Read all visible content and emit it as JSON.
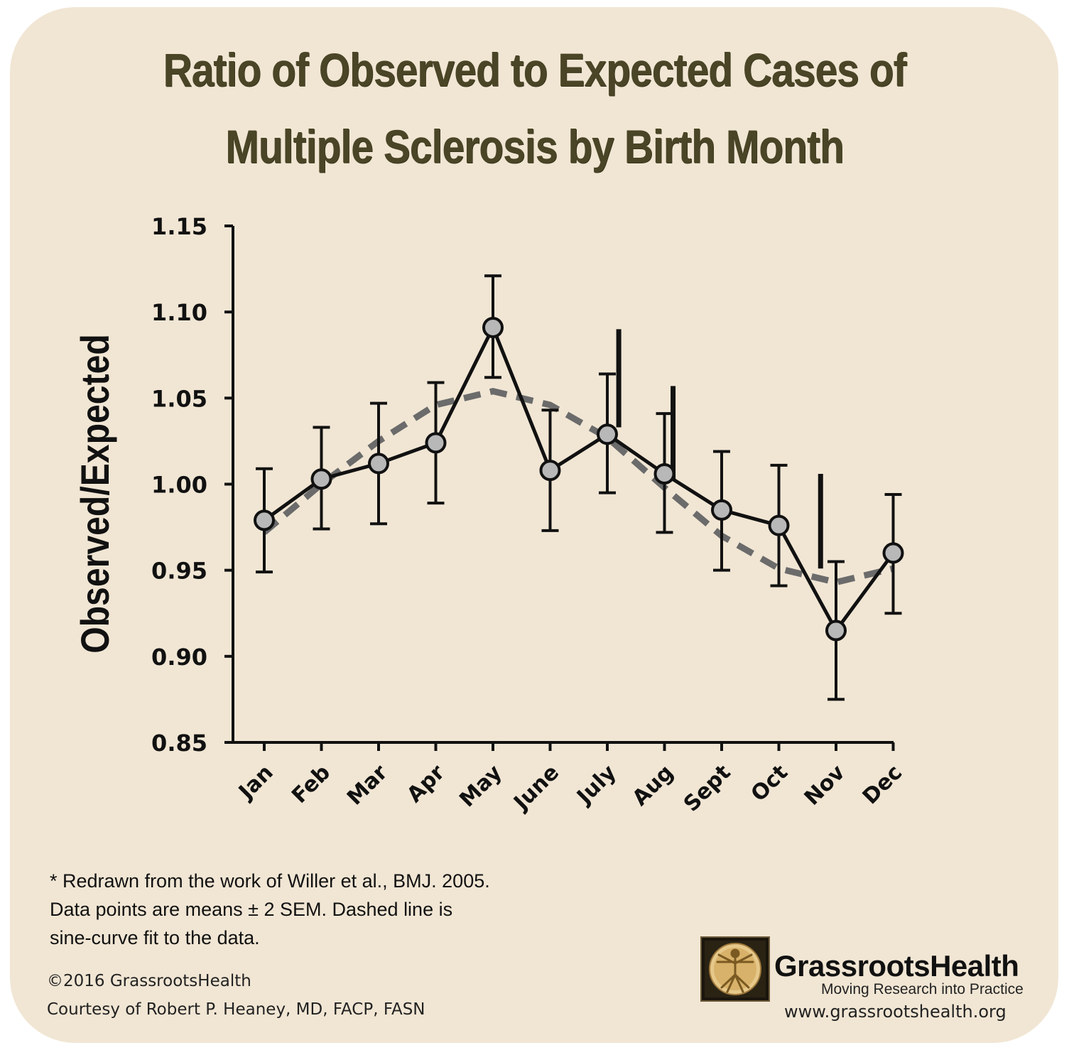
{
  "title_lines": [
    "Ratio of Observed to Expected Cases of",
    "Multiple Sclerosis by Birth Month"
  ],
  "chart_data": {
    "type": "line",
    "title": "Ratio of Observed to Expected Cases of Multiple Sclerosis by Birth Month",
    "xlabel": "",
    "ylabel": "Observed/Expected",
    "ylim": [
      0.85,
      1.15
    ],
    "yticks": [
      "0.85",
      "0.90",
      "0.95",
      "1.00",
      "1.05",
      "1.10",
      "1.15"
    ],
    "categories": [
      "Jan",
      "Feb",
      "Mar",
      "Apr",
      "May",
      "June",
      "July",
      "Aug",
      "Sept",
      "Oct",
      "Nov",
      "Dec"
    ],
    "series": [
      {
        "values": [
          0.979,
          1.003,
          1.012,
          1.024,
          1.091,
          1.008,
          1.029,
          1.006,
          0.985,
          0.976,
          0.915,
          0.96
        ],
        "error_low": [
          0.949,
          0.974,
          0.977,
          0.989,
          1.062,
          0.973,
          0.995,
          0.972,
          0.95,
          0.941,
          0.875,
          0.925
        ],
        "error_high": [
          1.009,
          1.033,
          1.047,
          1.059,
          1.121,
          1.043,
          1.064,
          1.041,
          1.019,
          1.011,
          0.955,
          0.994
        ]
      },
      {
        "style": "dashed",
        "values": [
          0.972,
          1.0,
          1.025,
          1.046,
          1.054,
          1.046,
          1.027,
          0.998,
          0.97,
          0.951,
          0.943,
          0.951
        ]
      }
    ],
    "extra_bars": [
      {
        "x": 6.2,
        "low": 1.033,
        "high": 1.09
      },
      {
        "x": 7.15,
        "low": 1.003,
        "high": 1.057
      },
      {
        "x": 9.73,
        "low": 0.951,
        "high": 1.006
      }
    ],
    "colors": {
      "observed": "#111111",
      "marker_fill": "#b8b8b8",
      "fit": "#6b6b6b",
      "title": "#4a4526",
      "background": "#f1e6d4"
    },
    "grid": false
  },
  "notes": [
    "* Redrawn from the work of Willer et al., BMJ. 2005.",
    "Data points are means ± 2 SEM.  Dashed line is",
    "sine-curve fit to the data."
  ],
  "copyright": "©2016 GrassrootsHealth",
  "courtesy": "Courtesy of Robert P. Heaney, MD, FACP, FASN",
  "brand": {
    "name": "GrassrootsHealth",
    "tagline": "Moving Research into Practice",
    "website": "www.grassrootshealth.org",
    "logo_icon": "vitruvian-man-icon"
  }
}
